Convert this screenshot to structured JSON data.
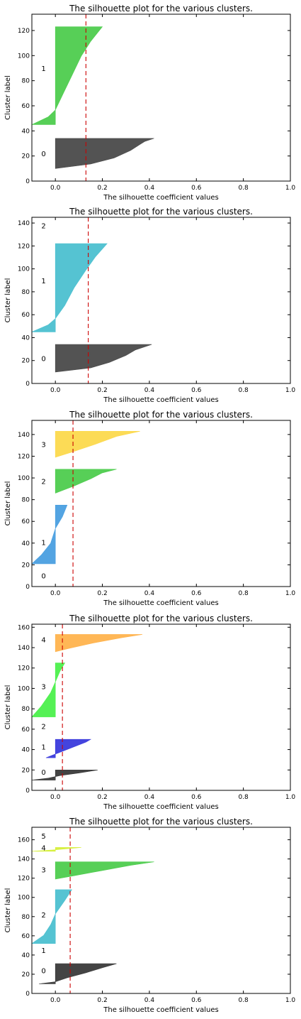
{
  "chart_data": [
    {
      "type": "area",
      "title": "The silhouette plot for the various clusters.",
      "xlabel": "The silhouette coefficient values",
      "ylabel": "Cluster label",
      "xlim": [
        -0.1,
        1.0
      ],
      "ylim": [
        0,
        133
      ],
      "xticks": [
        0.0,
        0.2,
        0.4,
        0.6,
        0.8,
        1.0
      ],
      "xtick_labels": [
        "0.0",
        "0.2",
        "0.4",
        "0.6",
        "0.8",
        "1.0"
      ],
      "yticks": [
        0,
        20,
        40,
        60,
        80,
        100,
        120
      ],
      "average_silhouette": 0.13,
      "clusters": [
        {
          "label": "0",
          "label_y": 22,
          "color": "#4a4a4a",
          "y_start": 10,
          "y_end": 34,
          "profile": [
            [
              0,
              0.0
            ],
            [
              0.15,
              0.15
            ],
            [
              0.35,
              0.25
            ],
            [
              0.6,
              0.32
            ],
            [
              0.8,
              0.36
            ],
            [
              0.9,
              0.38
            ],
            [
              1,
              0.42
            ]
          ]
        },
        {
          "label": "1",
          "label_y": 90,
          "color": "#4ecc4e",
          "y_start": 45,
          "y_end": 123,
          "profile": [
            [
              0,
              -0.1
            ],
            [
              0.08,
              -0.03
            ],
            [
              0.15,
              0.0
            ],
            [
              0.3,
              0.03
            ],
            [
              0.5,
              0.07
            ],
            [
              0.7,
              0.11
            ],
            [
              0.85,
              0.15
            ],
            [
              1,
              0.2
            ]
          ]
        }
      ]
    },
    {
      "type": "area",
      "title": "The silhouette plot for the various clusters.",
      "xlabel": "The silhouette coefficient values",
      "ylabel": "Cluster label",
      "xlim": [
        -0.1,
        1.0
      ],
      "ylim": [
        0,
        145
      ],
      "xticks": [
        0.0,
        0.2,
        0.4,
        0.6,
        0.8,
        1.0
      ],
      "xtick_labels": [
        "0.0",
        "0.2",
        "0.4",
        "0.6",
        "0.8",
        "1.0"
      ],
      "yticks": [
        0,
        20,
        40,
        60,
        80,
        100,
        120,
        140
      ],
      "average_silhouette": 0.14,
      "clusters": [
        {
          "label": "0",
          "label_y": 22,
          "color": "#4a4a4a",
          "y_start": 10,
          "y_end": 34,
          "profile": [
            [
              0,
              0.0
            ],
            [
              0.15,
              0.15
            ],
            [
              0.35,
              0.23
            ],
            [
              0.6,
              0.3
            ],
            [
              0.8,
              0.34
            ],
            [
              1,
              0.41
            ]
          ]
        },
        {
          "label": "1",
          "label_y": 90,
          "color": "#4cc0d0",
          "y_start": 45,
          "y_end": 122,
          "profile": [
            [
              0,
              -0.1
            ],
            [
              0.08,
              -0.03
            ],
            [
              0.15,
              0.0
            ],
            [
              0.3,
              0.04
            ],
            [
              0.5,
              0.08
            ],
            [
              0.7,
              0.13
            ],
            [
              0.85,
              0.17
            ],
            [
              1,
              0.22
            ]
          ]
        },
        {
          "label": "2",
          "label_y": 138,
          "color": "#9c9c9c",
          "y_start": 136,
          "y_end": 136,
          "profile": []
        }
      ]
    },
    {
      "type": "area",
      "title": "The silhouette plot for the various clusters.",
      "xlabel": "The silhouette coefficient values",
      "ylabel": "Cluster label",
      "xlim": [
        -0.1,
        1.0
      ],
      "ylim": [
        0,
        153
      ],
      "xticks": [
        0.0,
        0.2,
        0.4,
        0.6,
        0.8,
        1.0
      ],
      "xtick_labels": [
        "0.0",
        "0.2",
        "0.4",
        "0.6",
        "0.8",
        "1.0"
      ],
      "yticks": [
        0,
        20,
        40,
        60,
        80,
        100,
        120,
        140
      ],
      "average_silhouette": 0.075,
      "clusters": [
        {
          "label": "0",
          "label_y": 10,
          "color": "#5a5a5a",
          "y_start": 10,
          "y_end": 10,
          "profile": []
        },
        {
          "label": "1",
          "label_y": 41,
          "color": "#4a9fe0",
          "y_start": 21,
          "y_end": 75,
          "profile": [
            [
              0,
              -0.1
            ],
            [
              0.15,
              -0.06
            ],
            [
              0.35,
              -0.02
            ],
            [
              0.6,
              0.0
            ],
            [
              0.8,
              0.03
            ],
            [
              1,
              0.05
            ]
          ]
        },
        {
          "label": "2",
          "label_y": 97,
          "color": "#4ecc4e",
          "y_start": 86,
          "y_end": 108,
          "profile": [
            [
              0,
              0.0
            ],
            [
              0.3,
              0.08
            ],
            [
              0.6,
              0.15
            ],
            [
              0.85,
              0.2
            ],
            [
              1,
              0.26
            ]
          ]
        },
        {
          "label": "3",
          "label_y": 131,
          "color": "#fcd94d",
          "y_start": 119,
          "y_end": 143,
          "profile": [
            [
              0,
              0.0
            ],
            [
              0.2,
              0.07
            ],
            [
              0.5,
              0.17
            ],
            [
              0.8,
              0.26
            ],
            [
              1,
              0.36
            ]
          ]
        }
      ]
    },
    {
      "type": "area",
      "title": "The silhouette plot for the various clusters.",
      "xlabel": "The silhouette coefficient values",
      "ylabel": "Cluster label",
      "xlim": [
        -0.1,
        1.0
      ],
      "ylim": [
        0,
        163
      ],
      "xticks": [
        0.0,
        0.2,
        0.4,
        0.6,
        0.8,
        1.0
      ],
      "xtick_labels": [
        "0.0",
        "0.2",
        "0.4",
        "0.6",
        "0.8",
        "1.0"
      ],
      "yticks": [
        0,
        20,
        40,
        60,
        80,
        100,
        120,
        140,
        160
      ],
      "average_silhouette": 0.03,
      "clusters": [
        {
          "label": "0",
          "label_y": 18,
          "color": "#3a3a3a",
          "y_start": 10,
          "y_end": 20,
          "profile": [
            [
              0,
              -0.1
            ],
            [
              0.2,
              -0.03
            ],
            [
              0.45,
              0.02
            ],
            [
              0.7,
              0.1
            ],
            [
              1,
              0.18
            ]
          ]
        },
        {
          "label": "1",
          "label_y": 43,
          "color": "#3a3adc",
          "y_start": 32,
          "y_end": 50,
          "profile": [
            [
              0,
              -0.04
            ],
            [
              0.15,
              -0.01
            ],
            [
              0.3,
              0.02
            ],
            [
              0.6,
              0.08
            ],
            [
              0.85,
              0.13
            ],
            [
              1,
              0.15
            ]
          ]
        },
        {
          "label": "2",
          "label_y": 63,
          "color": "#9c9c9c",
          "y_start": 63,
          "y_end": 63,
          "profile": []
        },
        {
          "label": "3",
          "label_y": 102,
          "color": "#4cf04c",
          "y_start": 72,
          "y_end": 125,
          "profile": [
            [
              0,
              -0.1
            ],
            [
              0.2,
              -0.06
            ],
            [
              0.45,
              -0.02
            ],
            [
              0.65,
              0.0
            ],
            [
              0.85,
              0.02
            ],
            [
              1,
              0.04
            ]
          ]
        },
        {
          "label": "4",
          "label_y": 148,
          "color": "#ffb34d",
          "y_start": 136,
          "y_end": 153,
          "profile": [
            [
              0,
              0.0
            ],
            [
              0.2,
              0.06
            ],
            [
              0.5,
              0.16
            ],
            [
              0.8,
              0.28
            ],
            [
              1,
              0.37
            ]
          ]
        }
      ]
    },
    {
      "type": "area",
      "title": "The silhouette plot for the various clusters.",
      "xlabel": "The silhouette coefficient values",
      "ylabel": "Cluster label",
      "xlim": [
        -0.1,
        1.0
      ],
      "ylim": [
        0,
        173
      ],
      "xticks": [
        0.0,
        0.2,
        0.4,
        0.6,
        0.8,
        1.0
      ],
      "xtick_labels": [
        "0.0",
        "0.2",
        "0.4",
        "0.6",
        "0.8",
        "1.0"
      ],
      "yticks": [
        0,
        20,
        40,
        60,
        80,
        100,
        120,
        140,
        160
      ],
      "average_silhouette": 0.063,
      "clusters": [
        {
          "label": "0",
          "label_y": 24,
          "color": "#3a3a3a",
          "y_start": 10,
          "y_end": 31,
          "profile": [
            [
              0,
              -0.07
            ],
            [
              0.1,
              0.0
            ],
            [
              0.3,
              0.05
            ],
            [
              0.55,
              0.13
            ],
            [
              0.8,
              0.2
            ],
            [
              1,
              0.26
            ]
          ]
        },
        {
          "label": "1",
          "label_y": 45,
          "color": "#4ecc4e",
          "y_start": 45,
          "y_end": 45,
          "profile": []
        },
        {
          "label": "2",
          "label_y": 82,
          "color": "#4cc0d0",
          "y_start": 52,
          "y_end": 108,
          "profile": [
            [
              0,
              -0.1
            ],
            [
              0.15,
              -0.05
            ],
            [
              0.35,
              -0.02
            ],
            [
              0.55,
              0.0
            ],
            [
              0.8,
              0.04
            ],
            [
              1,
              0.07
            ]
          ]
        },
        {
          "label": "3",
          "label_y": 129,
          "color": "#4ecc4e",
          "y_start": 119,
          "y_end": 137,
          "profile": [
            [
              0,
              0.0
            ],
            [
              0.2,
              0.08
            ],
            [
              0.5,
              0.2
            ],
            [
              0.8,
              0.32
            ],
            [
              1,
              0.42
            ]
          ]
        },
        {
          "label": "4",
          "label_y": 152,
          "color": "#d6ef3a",
          "y_start": 148,
          "y_end": 152,
          "profile": [
            [
              0,
              -0.1
            ],
            [
              0.4,
              0.0
            ],
            [
              1,
              0.11
            ]
          ]
        },
        {
          "label": "5",
          "label_y": 164,
          "color": "#9c9c9c",
          "y_start": 164,
          "y_end": 164,
          "profile": []
        }
      ]
    }
  ],
  "styles": {
    "avg_line_color": "#cc0000",
    "cluster_outline": "#222222",
    "axes_edge": "#000000"
  }
}
